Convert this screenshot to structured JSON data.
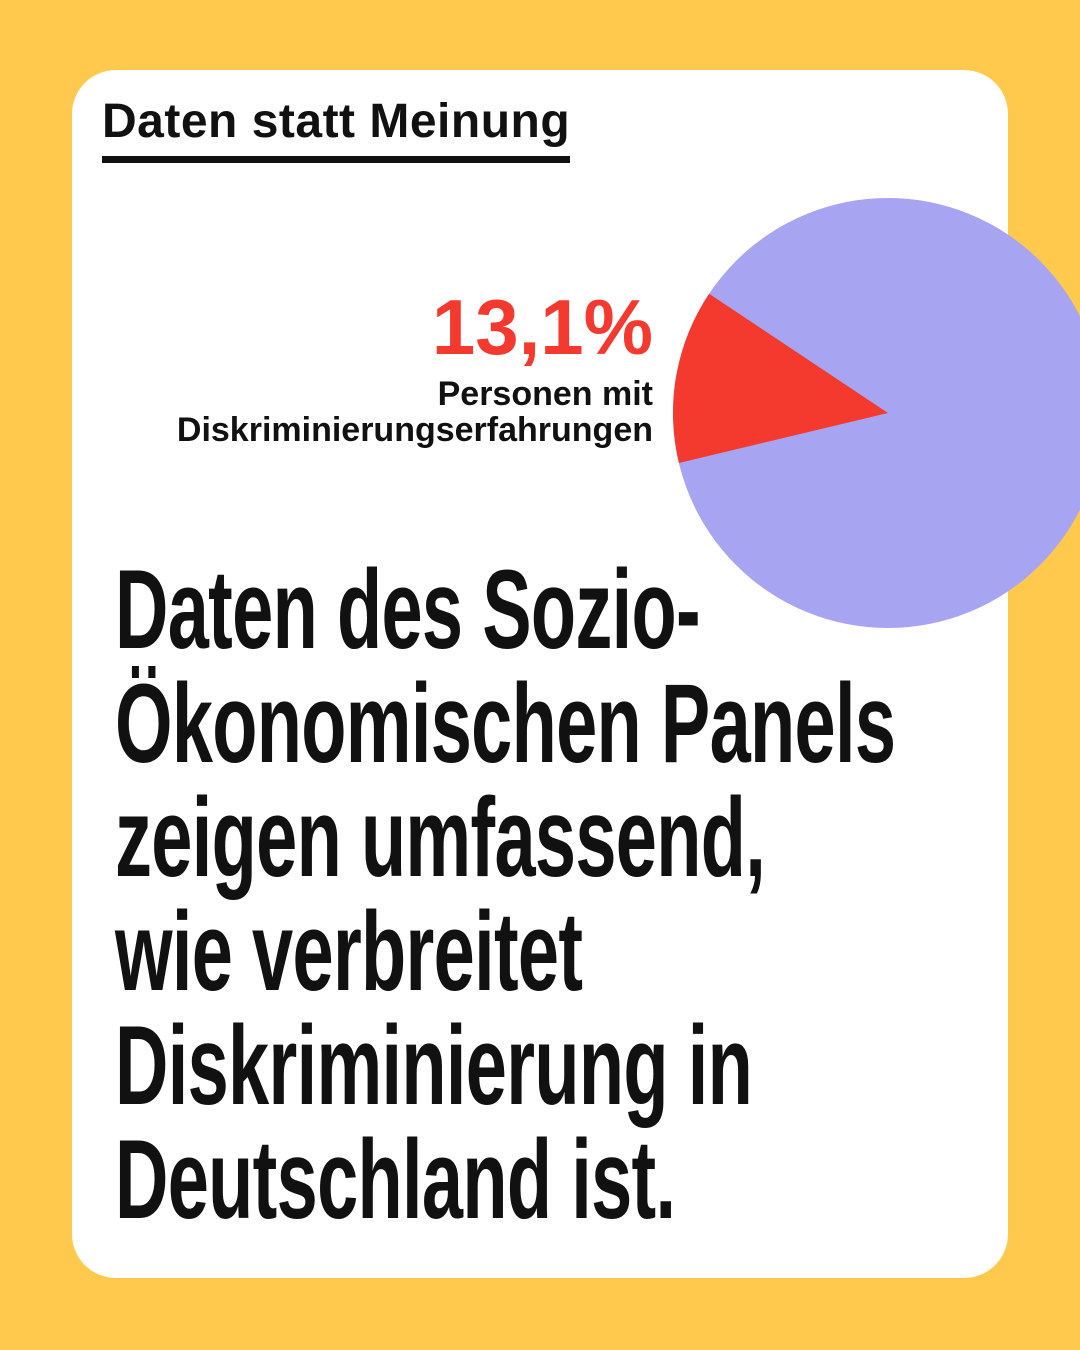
{
  "page": {
    "background_color": "#FFC94E",
    "card_color": "#FFFFFF",
    "text_color": "#111111"
  },
  "header": {
    "title": "Daten statt Meinung"
  },
  "stat": {
    "value": "13,1%",
    "value_color": "#F43A2F",
    "label_lines": [
      "Personen mit",
      "Diskriminierungserfahrungen"
    ]
  },
  "headline": {
    "lines": [
      "Daten des Sozio-",
      "Ökonomischen Panels",
      "zeigen umfassend,",
      "wie verbreitet",
      "Diskriminierung in",
      "Deutschland ist."
    ]
  },
  "chart_data": {
    "type": "pie",
    "values": [
      13.1,
      86.9
    ],
    "labels": [
      "Personen mit Diskriminierungserfahrungen",
      ""
    ],
    "colors": [
      "#F43A2F",
      "#A7A5F1"
    ],
    "datalabel": "13,1%",
    "start_angle_deg": 146.3,
    "legend_position": "left-of-chart"
  }
}
